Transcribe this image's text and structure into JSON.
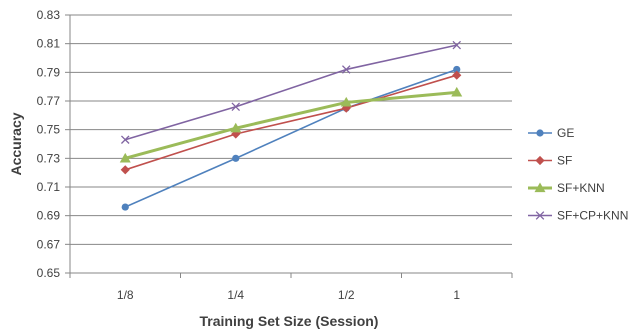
{
  "chart_data": {
    "type": "line",
    "xlabel": "Training Set Size (Session)",
    "ylabel": "Accuracy",
    "categories": [
      "1/8",
      "1/4",
      "1/2",
      "1"
    ],
    "ylim": [
      0.65,
      0.83
    ],
    "yticks": [
      "0.65",
      "0.67",
      "0.69",
      "0.71",
      "0.73",
      "0.75",
      "0.77",
      "0.79",
      "0.81",
      "0.83"
    ],
    "grid": true,
    "legend_position": "right",
    "series": [
      {
        "name": "GE",
        "values": [
          0.696,
          0.73,
          0.765,
          0.792
        ],
        "color": "#4F81BD",
        "marker": "circle"
      },
      {
        "name": "SF",
        "values": [
          0.722,
          0.747,
          0.765,
          0.788
        ],
        "color": "#C0504D",
        "marker": "diamond"
      },
      {
        "name": "SF+KNN",
        "values": [
          0.73,
          0.751,
          0.769,
          0.776
        ],
        "color": "#9BBB59",
        "marker": "triangle"
      },
      {
        "name": "SF+CP+KNN",
        "values": [
          0.743,
          0.766,
          0.792,
          0.809
        ],
        "color": "#8064A2",
        "marker": "x"
      }
    ]
  }
}
